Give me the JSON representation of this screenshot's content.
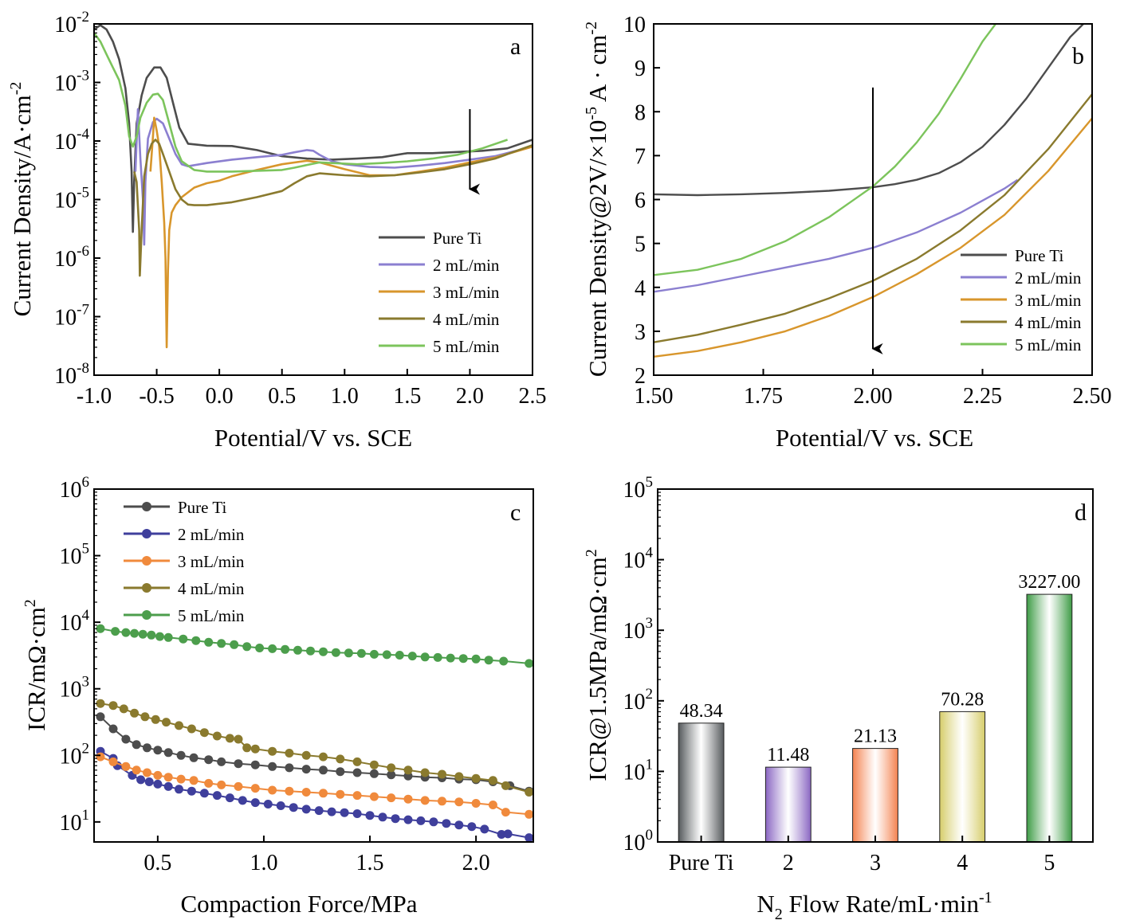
{
  "chart_data": [
    {
      "panel": "a",
      "type": "line",
      "xlabel": "Potential/V vs. SCE",
      "ylabel": "Current Density/A·cm",
      "ylabel_sup": "-2",
      "xlim": [
        -1.0,
        2.5
      ],
      "ylim": [
        1e-08,
        0.01
      ],
      "y_scale": "log",
      "x_ticks": [
        -1.0,
        -0.5,
        0.0,
        0.5,
        1.0,
        1.5,
        2.0,
        2.5
      ],
      "x_tick_labels": [
        "-1.0",
        "-0.5",
        "0.0",
        "0.5",
        "1.0",
        "1.5",
        "2.0",
        "2.5"
      ],
      "y_ticks": [
        1e-08,
        1e-07,
        1e-06,
        1e-05,
        0.0001,
        0.001,
        0.01
      ],
      "y_tick_base": "10",
      "y_tick_exps": [
        "-8",
        "-7",
        "-6",
        "-5",
        "-4",
        "-3",
        "-2"
      ],
      "legend_position": "bottom-right",
      "annotation": "arrow pointing down at x = 2.0",
      "series": [
        {
          "name": "Pure Ti",
          "color": "#4d4d4d",
          "x": [
            -1.0,
            -0.95,
            -0.9,
            -0.85,
            -0.8,
            -0.75,
            -0.72,
            -0.7,
            -0.69,
            -0.68,
            -0.66,
            -0.62,
            -0.58,
            -0.52,
            -0.47,
            -0.42,
            -0.37,
            -0.32,
            -0.25,
            -0.1,
            0.1,
            0.3,
            0.5,
            0.7,
            0.9,
            1.1,
            1.3,
            1.5,
            1.7,
            1.9,
            2.1,
            2.3,
            2.5
          ],
          "y": [
            0.008,
            0.0095,
            0.008,
            0.005,
            0.0025,
            0.0008,
            0.0002,
            3e-05,
            2.8e-06,
            2e-05,
            0.0002,
            0.0006,
            0.0012,
            0.0018,
            0.0018,
            0.0012,
            0.00045,
            0.00017,
            9e-05,
            8.3e-05,
            8.2e-05,
            7e-05,
            5.5e-05,
            5e-05,
            4.8e-05,
            5e-05,
            5.3e-05,
            6.2e-05,
            6.2e-05,
            6.5e-05,
            6.8e-05,
            7.5e-05,
            0.000105
          ]
        },
        {
          "name": "2 mL/min",
          "color": "#8b7fd0",
          "x": [
            -0.67,
            -0.65,
            -0.63,
            -0.61,
            -0.6,
            -0.59,
            -0.57,
            -0.53,
            -0.5,
            -0.45,
            -0.4,
            -0.35,
            -0.3,
            -0.25,
            -0.1,
            0.1,
            0.3,
            0.5,
            0.6,
            0.7,
            0.75,
            0.8,
            0.9,
            1.0,
            1.2,
            1.4,
            1.6,
            1.8,
            2.0,
            2.2,
            2.5
          ],
          "y": [
            3e-05,
            0.00035,
            5e-05,
            1e-05,
            1.7e-06,
            2e-05,
            0.00011,
            0.00021,
            0.00024,
            0.0002,
            0.00011,
            6e-05,
            4e-05,
            3.7e-05,
            4.2e-05,
            4.8e-05,
            5.3e-05,
            5.8e-05,
            6.4e-05,
            7e-05,
            6.8e-05,
            5.8e-05,
            4.5e-05,
            4e-05,
            3.6e-05,
            3.5e-05,
            3.8e-05,
            4.2e-05,
            4.8e-05,
            5.5e-05,
            8e-05
          ]
        },
        {
          "name": "3 mL/min",
          "color": "#d8962c",
          "x": [
            -0.55,
            -0.53,
            -0.52,
            -0.5,
            -0.48,
            -0.46,
            -0.44,
            -0.43,
            -0.42,
            -0.41,
            -0.4,
            -0.38,
            -0.35,
            -0.3,
            -0.2,
            -0.1,
            0.0,
            0.1,
            0.3,
            0.5,
            0.7,
            0.8,
            1.0,
            1.2,
            1.4,
            1.6,
            1.8,
            2.0,
            2.2,
            2.5
          ],
          "y": [
            3e-05,
            0.00012,
            0.00025,
            0.00015,
            8e-05,
            2e-05,
            4e-06,
            1e-06,
            3e-08,
            6e-07,
            3e-06,
            6e-06,
            8e-06,
            1.1e-05,
            1.6e-05,
            1.9e-05,
            2.1e-05,
            2.5e-05,
            3.2e-05,
            4e-05,
            4.6e-05,
            4.3e-05,
            3.3e-05,
            2.6e-05,
            2.6e-05,
            3e-05,
            3.5e-05,
            4.3e-05,
            5.2e-05,
            8e-05
          ]
        },
        {
          "name": "4 mL/min",
          "color": "#8a7a2e",
          "x": [
            -0.68,
            -0.66,
            -0.64,
            -0.635,
            -0.62,
            -0.6,
            -0.57,
            -0.54,
            -0.51,
            -0.48,
            -0.45,
            -0.4,
            -0.35,
            -0.3,
            -0.25,
            -0.2,
            -0.1,
            0.1,
            0.3,
            0.5,
            0.6,
            0.7,
            0.8,
            0.9,
            1.0,
            1.2,
            1.4,
            1.6,
            1.8,
            2.0,
            2.2,
            2.5
          ],
          "y": [
            3e-05,
            2e-05,
            3e-06,
            5e-07,
            3e-06,
            2.5e-05,
            6e-05,
            9e-05,
            0.000105,
            9e-05,
            6e-05,
            3e-05,
            1.5e-05,
            1e-05,
            8.2e-06,
            8e-06,
            8e-06,
            9e-06,
            1.1e-05,
            1.4e-05,
            1.9e-05,
            2.5e-05,
            2.8e-05,
            2.7e-05,
            2.6e-05,
            2.5e-05,
            2.6e-05,
            2.9e-05,
            3.3e-05,
            4e-05,
            5e-05,
            8.5e-05
          ]
        },
        {
          "name": "5 mL/min",
          "color": "#7cc45c",
          "x": [
            -1.0,
            -0.95,
            -0.9,
            -0.85,
            -0.8,
            -0.75,
            -0.72,
            -0.69,
            -0.66,
            -0.63,
            -0.58,
            -0.53,
            -0.49,
            -0.45,
            -0.4,
            -0.35,
            -0.3,
            -0.2,
            -0.1,
            0.1,
            0.3,
            0.5,
            0.6,
            0.7,
            0.8,
            0.9,
            1.1,
            1.3,
            1.5,
            1.7,
            1.9,
            2.1,
            2.3
          ],
          "y": [
            0.007,
            0.005,
            0.003,
            0.0018,
            0.0011,
            0.0004,
            0.00012,
            8e-05,
            0.00012,
            0.00025,
            0.00045,
            0.00062,
            0.00064,
            0.0005,
            0.0002,
            8e-05,
            4.5e-05,
            3.2e-05,
            3e-05,
            3e-05,
            3.1e-05,
            3.2e-05,
            3.5e-05,
            3.9e-05,
            4.3e-05,
            4.2e-05,
            4e-05,
            4.2e-05,
            4.5e-05,
            5e-05,
            5.8e-05,
            7.5e-05,
            0.000105
          ]
        }
      ]
    },
    {
      "panel": "b",
      "type": "line",
      "xlabel": "Potential/V vs. SCE",
      "ylabel": "Current Density@2V/×10",
      "ylabel_sup": "-5",
      "ylabel_rest": " A · cm",
      "ylabel_sup2": "-2",
      "xlim": [
        1.5,
        2.5
      ],
      "ylim": [
        2,
        10
      ],
      "x_ticks": [
        1.5,
        1.75,
        2.0,
        2.25,
        2.5
      ],
      "x_tick_labels": [
        "1.50",
        "1.75",
        "2.00",
        "2.25",
        "2.50"
      ],
      "y_ticks": [
        2,
        3,
        4,
        5,
        6,
        7,
        8,
        9,
        10
      ],
      "y_tick_labels": [
        "2",
        "3",
        "4",
        "5",
        "6",
        "7",
        "8",
        "9",
        "10"
      ],
      "legend_position": "bottom-right",
      "annotation": "arrow pointing down at x = 2.00",
      "series": [
        {
          "name": "Pure Ti",
          "color": "#4d4d4d",
          "x": [
            1.5,
            1.6,
            1.7,
            1.8,
            1.9,
            2.0,
            2.05,
            2.1,
            2.15,
            2.2,
            2.25,
            2.3,
            2.35,
            2.4,
            2.45,
            2.48
          ],
          "y": [
            6.12,
            6.1,
            6.12,
            6.15,
            6.2,
            6.28,
            6.35,
            6.45,
            6.6,
            6.85,
            7.2,
            7.7,
            8.3,
            9.0,
            9.7,
            10.0
          ]
        },
        {
          "name": "2 mL/min",
          "color": "#8b7fd0",
          "x": [
            1.5,
            1.6,
            1.7,
            1.8,
            1.9,
            2.0,
            2.1,
            2.2,
            2.3,
            2.33
          ],
          "y": [
            3.9,
            4.05,
            4.25,
            4.45,
            4.65,
            4.9,
            5.25,
            5.7,
            6.25,
            6.45
          ]
        },
        {
          "name": "3 mL/min",
          "color": "#d8962c",
          "x": [
            1.5,
            1.6,
            1.7,
            1.8,
            1.9,
            2.0,
            2.1,
            2.2,
            2.3,
            2.4,
            2.5
          ],
          "y": [
            2.42,
            2.55,
            2.75,
            3.0,
            3.35,
            3.78,
            4.3,
            4.9,
            5.65,
            6.65,
            7.85
          ]
        },
        {
          "name": "4 mL/min",
          "color": "#8a7a2e",
          "x": [
            1.5,
            1.6,
            1.7,
            1.8,
            1.9,
            2.0,
            2.1,
            2.2,
            2.3,
            2.4,
            2.5
          ],
          "y": [
            2.75,
            2.92,
            3.15,
            3.4,
            3.75,
            4.15,
            4.65,
            5.3,
            6.1,
            7.15,
            8.4
          ]
        },
        {
          "name": "5 mL/min",
          "color": "#7cc45c",
          "x": [
            1.5,
            1.6,
            1.7,
            1.8,
            1.9,
            1.95,
            2.0,
            2.05,
            2.1,
            2.15,
            2.2,
            2.25,
            2.28
          ],
          "y": [
            4.28,
            4.4,
            4.65,
            5.05,
            5.6,
            5.95,
            6.3,
            6.75,
            7.3,
            7.95,
            8.75,
            9.6,
            10.0
          ]
        }
      ]
    },
    {
      "panel": "c",
      "type": "line",
      "markers": "circle",
      "xlabel": "Compaction Force/MPa",
      "ylabel": "ICR/mΩ·cm",
      "ylabel_sup": "2",
      "xlim": [
        0.2,
        2.27
      ],
      "ylim": [
        5,
        1000000.0
      ],
      "y_scale": "log",
      "x_ticks": [
        0.5,
        1.0,
        1.5,
        2.0
      ],
      "x_tick_labels": [
        "0.5",
        "1.0",
        "1.5",
        "2.0"
      ],
      "y_ticks": [
        10,
        100,
        1000,
        10000,
        100000,
        1000000
      ],
      "y_tick_base": "10",
      "y_tick_exps": [
        "1",
        "2",
        "3",
        "4",
        "5",
        "6"
      ],
      "legend_position": "top-left",
      "series": [
        {
          "name": "Pure Ti",
          "color": "#4d4d4d",
          "x": [
            0.23,
            0.29,
            0.35,
            0.4,
            0.45,
            0.5,
            0.55,
            0.61,
            0.67,
            0.74,
            0.8,
            0.88,
            0.96,
            1.04,
            1.12,
            1.2,
            1.28,
            1.36,
            1.44,
            1.52,
            1.6,
            1.68,
            1.76,
            1.84,
            1.92,
            2.0,
            2.08,
            2.16,
            2.25
          ],
          "y": [
            380,
            250,
            175,
            145,
            130,
            120,
            110,
            100,
            92,
            86,
            80,
            75,
            72,
            68,
            65,
            62,
            60,
            57,
            55,
            53,
            51,
            49,
            47,
            46,
            44,
            43,
            40,
            35,
            29
          ]
        },
        {
          "name": "2 mL/min",
          "color": "#3f3f9c",
          "x": [
            0.23,
            0.29,
            0.31,
            0.38,
            0.42,
            0.46,
            0.5,
            0.55,
            0.6,
            0.66,
            0.72,
            0.78,
            0.84,
            0.9,
            0.96,
            1.02,
            1.08,
            1.14,
            1.2,
            1.26,
            1.32,
            1.38,
            1.44,
            1.5,
            1.56,
            1.62,
            1.68,
            1.74,
            1.8,
            1.86,
            1.92,
            1.98,
            2.04,
            2.12,
            2.15,
            2.25
          ],
          "y": [
            115,
            90,
            70,
            50,
            43,
            40,
            37,
            34,
            31,
            29,
            27,
            25,
            23,
            21,
            19.5,
            18.5,
            17.5,
            16.5,
            15.5,
            14.8,
            14.2,
            13.8,
            13.3,
            12.5,
            11.8,
            11.2,
            10.8,
            10.4,
            10,
            9.5,
            9,
            8.5,
            7.8,
            6.5,
            6.6,
            5.8
          ]
        },
        {
          "name": "3 mL/min",
          "color": "#f08a3c",
          "x": [
            0.23,
            0.29,
            0.35,
            0.4,
            0.45,
            0.5,
            0.55,
            0.61,
            0.67,
            0.74,
            0.8,
            0.88,
            0.96,
            1.04,
            1.12,
            1.2,
            1.28,
            1.36,
            1.44,
            1.52,
            1.6,
            1.68,
            1.76,
            1.84,
            1.92,
            2.0,
            2.08,
            2.14,
            2.25
          ],
          "y": [
            95,
            80,
            68,
            60,
            55,
            50,
            47,
            44,
            42,
            38,
            36,
            34,
            32,
            30,
            29,
            28,
            27,
            26,
            25,
            24,
            23,
            22,
            21,
            20.5,
            20,
            19,
            18,
            14,
            13
          ]
        },
        {
          "name": "4 mL/min",
          "color": "#8a7a2e",
          "x": [
            0.23,
            0.29,
            0.34,
            0.39,
            0.44,
            0.49,
            0.54,
            0.6,
            0.66,
            0.72,
            0.78,
            0.84,
            0.88,
            0.92,
            0.96,
            1.04,
            1.12,
            1.2,
            1.28,
            1.36,
            1.44,
            1.52,
            1.6,
            1.68,
            1.76,
            1.84,
            1.92,
            2.0,
            2.08,
            2.14,
            2.25
          ],
          "y": [
            600,
            560,
            500,
            430,
            380,
            345,
            315,
            280,
            250,
            220,
            195,
            180,
            175,
            130,
            125,
            115,
            108,
            100,
            95,
            88,
            80,
            72,
            65,
            60,
            55,
            52,
            48,
            45,
            42,
            35,
            28
          ]
        },
        {
          "name": "5 mL/min",
          "color": "#4c9e4c",
          "x": [
            0.23,
            0.3,
            0.35,
            0.39,
            0.43,
            0.47,
            0.51,
            0.55,
            0.62,
            0.68,
            0.74,
            0.8,
            0.86,
            0.92,
            0.98,
            1.04,
            1.1,
            1.16,
            1.22,
            1.28,
            1.34,
            1.4,
            1.46,
            1.52,
            1.58,
            1.64,
            1.7,
            1.76,
            1.82,
            1.88,
            1.94,
            2.0,
            2.06,
            2.13,
            2.25
          ],
          "y": [
            8000,
            7300,
            7000,
            6800,
            6600,
            6400,
            6100,
            5900,
            5600,
            5300,
            5000,
            4800,
            4600,
            4300,
            4100,
            4000,
            3900,
            3800,
            3700,
            3600,
            3500,
            3450,
            3400,
            3300,
            3250,
            3200,
            3100,
            3000,
            2950,
            2900,
            2850,
            2800,
            2700,
            2600,
            2400
          ]
        }
      ]
    },
    {
      "panel": "d",
      "type": "bar",
      "xlabel": "N",
      "xlabel_sub": "2",
      "xlabel_rest": " Flow Rate/mL·min",
      "xlabel_sup": "-1",
      "ylabel": "ICR@1.5MPa/mΩ·cm",
      "ylabel_sup": "2",
      "ylim": [
        1,
        100000
      ],
      "y_scale": "log",
      "y_ticks": [
        1,
        10,
        100,
        1000,
        10000,
        100000
      ],
      "y_tick_base": "10",
      "y_tick_exps": [
        "0",
        "1",
        "2",
        "3",
        "4",
        "5"
      ],
      "categories": [
        "Pure Ti",
        "2",
        "3",
        "4",
        "5"
      ],
      "values": [
        48.34,
        11.48,
        21.13,
        70.28,
        3227.0
      ],
      "value_labels": [
        "48.34",
        "11.48",
        "21.13",
        "70.28",
        "3227.00"
      ],
      "colors": [
        "#55595c",
        "#8a66c2",
        "#f4824f",
        "#d6cd6a",
        "#3d9b45"
      ]
    }
  ],
  "panel_labels": [
    "a",
    "b",
    "c",
    "d"
  ]
}
